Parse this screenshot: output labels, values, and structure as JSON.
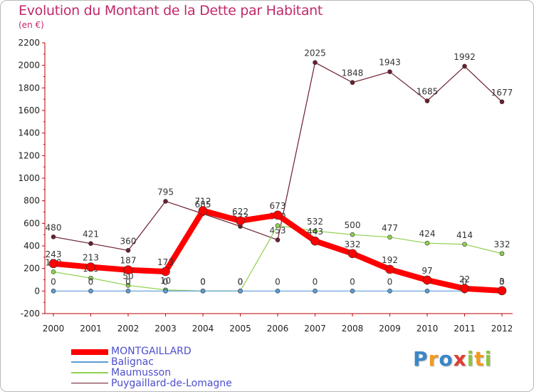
{
  "chart_data": {
    "type": "line",
    "title": "Evolution du Montant de la Dette par Habitant",
    "subtitle": "(en €)",
    "xlabel": "",
    "ylabel": "",
    "categories": [
      "2000",
      "2001",
      "2002",
      "2003",
      "2004",
      "2005",
      "2006",
      "2007",
      "2008",
      "2009",
      "2010",
      "2011",
      "2012"
    ],
    "ylim": [
      -200,
      2200
    ],
    "yticks": [
      -200,
      0,
      200,
      400,
      600,
      800,
      1000,
      1200,
      1400,
      1600,
      1800,
      2000,
      2200
    ],
    "ytick_labels": [
      "-200",
      "0",
      "200",
      "400",
      "600",
      "800",
      "1000",
      "1200",
      "1400",
      "1600",
      "1800",
      "2000",
      "2200"
    ],
    "grid": false,
    "legend_position": "bottom-left",
    "series": [
      {
        "name": "Puygaillard-de-Lomagne",
        "color": "#6b1f2e",
        "values": [
          480,
          421,
          360,
          795,
          685,
          573,
          453,
          2025,
          1848,
          1943,
          1685,
          1992,
          1677
        ],
        "labels": [
          "480",
          "421",
          "360",
          "795",
          "685",
          "573",
          "453",
          "2025",
          "1848",
          "1943",
          "1685",
          "1992",
          "1677"
        ]
      },
      {
        "name": "Maumusson",
        "color": "#8fd14f",
        "values": [
          170,
          115,
          50,
          10,
          0,
          0,
          580,
          532,
          500,
          477,
          424,
          414,
          332
        ],
        "labels": [
          "170",
          "115",
          "50",
          "10",
          "0",
          "0",
          "580",
          "532",
          "500",
          "477",
          "424",
          "414",
          "332"
        ]
      },
      {
        "name": "Balignac",
        "color": "#5b9bd5",
        "values": [
          0,
          0,
          0,
          0,
          0,
          0,
          0,
          0,
          0,
          0,
          0,
          0,
          0
        ],
        "labels": [
          "0",
          "0",
          "0",
          "0",
          "0",
          "0",
          "0",
          "0",
          "0",
          "0",
          "0",
          "0",
          "0"
        ]
      },
      {
        "name": "MONTGAILLARD",
        "color": "#ff0000",
        "values": [
          243,
          213,
          187,
          173,
          712,
          622,
          673,
          443,
          332,
          192,
          97,
          22,
          3
        ],
        "labels": [
          "243",
          "213",
          "187",
          "173",
          "712",
          "622",
          "673",
          "443",
          "332",
          "192",
          "97",
          "22",
          "3"
        ]
      }
    ]
  },
  "legend": [
    {
      "name": "MONTGAILLARD",
      "color": "#ff0000"
    },
    {
      "name": "Balignac",
      "color": "#5b9bd5"
    },
    {
      "name": "Maumusson",
      "color": "#8fd14f"
    },
    {
      "name": "Puygaillard-de-Lomagne",
      "color": "#6b1f2e"
    }
  ],
  "logo": {
    "letters": [
      "P",
      "r",
      "o",
      "x",
      "i",
      "t",
      "i"
    ],
    "colors": [
      "#3a86c8",
      "#f29a1f",
      "#3a86c8",
      "#e03c31",
      "#8cc63f",
      "#f29a1f",
      "#8cc63f"
    ]
  }
}
